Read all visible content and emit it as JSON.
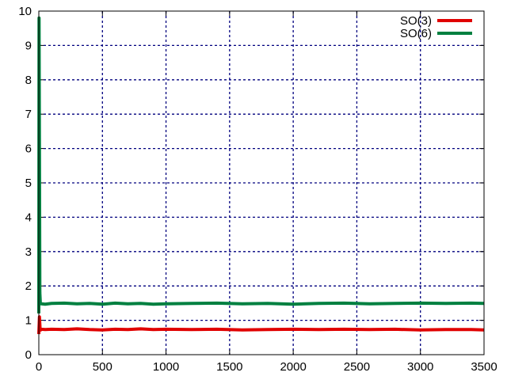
{
  "chart_data": {
    "type": "line",
    "title": "",
    "xlabel": "",
    "ylabel": "",
    "xlim": [
      0,
      3500
    ],
    "ylim": [
      0,
      10
    ],
    "x_ticks": [
      0,
      500,
      1000,
      1500,
      2000,
      2500,
      3000,
      3500
    ],
    "y_ticks": [
      0,
      1,
      2,
      3,
      4,
      5,
      6,
      7,
      8,
      9,
      10
    ],
    "grid": true,
    "legend_position": "top-right",
    "series": [
      {
        "name": "SO(3)",
        "color": "#e00000",
        "x": [
          0,
          5,
          10,
          15,
          20,
          50,
          100,
          200,
          300,
          400,
          500,
          600,
          700,
          800,
          900,
          1000,
          1200,
          1400,
          1600,
          1800,
          2000,
          2200,
          2400,
          2600,
          2800,
          3000,
          3200,
          3400,
          3500
        ],
        "y": [
          0.6,
          1.1,
          0.75,
          0.72,
          0.74,
          0.73,
          0.74,
          0.73,
          0.75,
          0.73,
          0.72,
          0.74,
          0.73,
          0.75,
          0.73,
          0.74,
          0.73,
          0.74,
          0.72,
          0.73,
          0.74,
          0.73,
          0.74,
          0.73,
          0.74,
          0.72,
          0.73,
          0.73,
          0.72
        ]
      },
      {
        "name": "SO(6)",
        "color": "#008040",
        "x": [
          0,
          2,
          5,
          8,
          12,
          20,
          50,
          100,
          200,
          300,
          400,
          500,
          600,
          700,
          800,
          900,
          1000,
          1200,
          1400,
          1600,
          1800,
          2000,
          2200,
          2400,
          2600,
          2800,
          3000,
          3200,
          3400,
          3500
        ],
        "y": [
          1.2,
          9.8,
          6.0,
          1.8,
          1.5,
          1.48,
          1.47,
          1.49,
          1.5,
          1.48,
          1.49,
          1.47,
          1.5,
          1.48,
          1.49,
          1.47,
          1.48,
          1.49,
          1.5,
          1.48,
          1.49,
          1.47,
          1.49,
          1.5,
          1.48,
          1.49,
          1.5,
          1.49,
          1.5,
          1.49
        ]
      }
    ]
  }
}
